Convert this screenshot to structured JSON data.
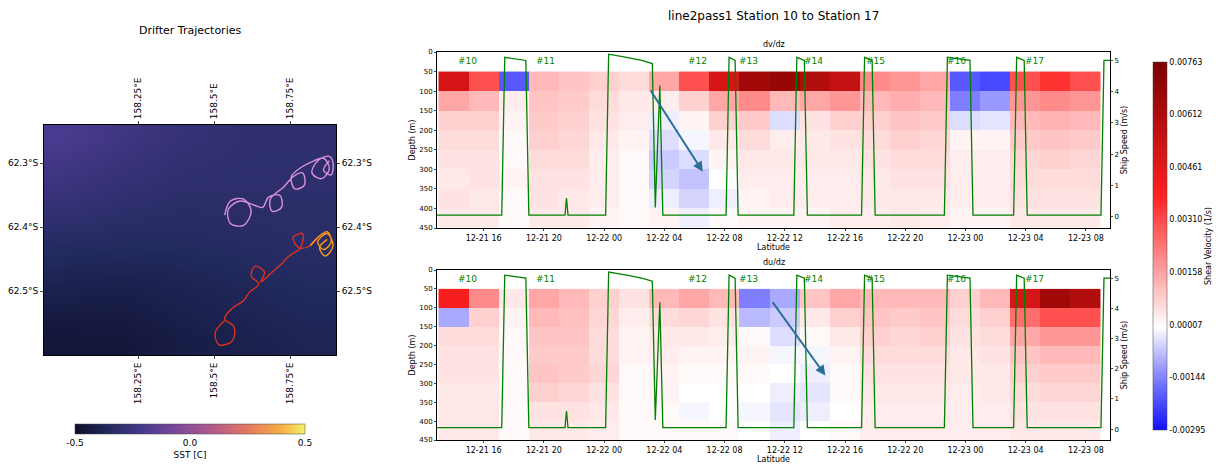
{
  "chart_data": [
    {
      "type": "map",
      "title": "Drifter Trajectories",
      "xlim": [
        157.94,
        158.9
      ],
      "xticks": [
        {
          "value": 158.25,
          "label": "158.25°E"
        },
        {
          "value": 158.5,
          "label": "158.5°E"
        },
        {
          "value": 158.75,
          "label": "158.75°E"
        }
      ],
      "ylim": [
        -62.6,
        -62.24
      ],
      "yticks": [
        {
          "value": -62.3,
          "label": "62.3°S"
        },
        {
          "value": -62.4,
          "label": "62.4°S"
        },
        {
          "value": -62.5,
          "label": "62.5°S"
        }
      ],
      "sst": {
        "label": "SST [C]",
        "range": [
          -0.5,
          0.5
        ],
        "ticks": [
          -0.5,
          {
            "value": 0,
            "label": "0.0"
          },
          0.5
        ],
        "x": [
          158.0,
          158.2,
          158.4,
          158.6,
          158.8
        ],
        "y": [
          -62.58,
          -62.5,
          -62.42,
          -62.34,
          -62.26
        ],
        "z": [
          [
            -0.46,
            -0.45,
            -0.42,
            -0.4,
            -0.38
          ],
          [
            -0.4,
            -0.41,
            -0.39,
            -0.37,
            -0.35
          ],
          [
            -0.33,
            -0.34,
            -0.34,
            -0.33,
            -0.32
          ],
          [
            -0.26,
            -0.29,
            -0.31,
            -0.31,
            -0.31
          ],
          [
            -0.2,
            -0.24,
            -0.28,
            -0.3,
            -0.3
          ]
        ]
      },
      "series": [
        {
          "color": "#dc8fdc",
          "x": [
            158.534,
            158.553,
            158.596,
            158.621,
            158.596,
            158.553,
            158.546,
            158.584,
            158.628,
            158.659,
            158.678,
            158.715,
            158.721,
            158.69,
            158.684,
            158.728,
            158.759,
            158.79,
            158.796,
            158.765,
            158.753,
            158.79,
            158.828,
            158.859,
            158.878,
            158.853,
            158.821,
            158.84,
            158.878,
            158.89,
            158.884,
            158.859,
            158.878
          ],
          "y": [
            -62.381,
            -62.359,
            -62.356,
            -62.375,
            -62.397,
            -62.394,
            -62.372,
            -62.359,
            -62.365,
            -62.369,
            -62.353,
            -62.35,
            -62.369,
            -62.375,
            -62.356,
            -62.337,
            -62.321,
            -62.315,
            -62.334,
            -62.34,
            -62.321,
            -62.305,
            -62.296,
            -62.292,
            -62.308,
            -62.324,
            -62.315,
            -62.296,
            -62.289,
            -62.299,
            -62.318,
            -62.311,
            -62.296
          ]
        },
        {
          "color": "#d8321e",
          "x": [
            158.534,
            158.503,
            158.515,
            158.559,
            158.565,
            158.534,
            158.559,
            158.596,
            158.615,
            158.646,
            158.621,
            158.634,
            158.665,
            158.653,
            158.684,
            158.721,
            158.746,
            158.784,
            158.79,
            158.759,
            158.778,
            158.815,
            158.84
          ],
          "y": [
            -62.546,
            -62.565,
            -62.584,
            -62.578,
            -62.556,
            -62.543,
            -62.527,
            -62.515,
            -62.502,
            -62.489,
            -62.476,
            -62.461,
            -62.47,
            -62.486,
            -62.473,
            -62.457,
            -62.445,
            -62.432,
            -62.41,
            -62.416,
            -62.432,
            -62.429,
            -62.416
          ]
        },
        {
          "color": "#ff9a1a",
          "x": [
            158.815,
            158.84,
            158.871,
            158.884,
            158.859,
            158.84,
            158.871,
            158.89,
            158.865,
            158.846,
            158.871
          ],
          "y": [
            -62.429,
            -62.416,
            -62.407,
            -62.423,
            -62.435,
            -62.423,
            -62.41,
            -62.429,
            -62.445,
            -62.432,
            -62.419
          ]
        }
      ]
    },
    {
      "type": "heatmap",
      "title": "line2pass1 Station 10 to Station 17",
      "x_label": "Latitude",
      "y_label": "Depth (m)",
      "y2_label": "Ship Speed (m/s)",
      "xlim": [
        12.9,
        57.6
      ],
      "xticks": [
        {
          "value": 16,
          "label": "12-21 16"
        },
        {
          "value": 20,
          "label": "12-21 20"
        },
        {
          "value": 24,
          "label": "12-22 00"
        },
        {
          "value": 28,
          "label": "12-22 04"
        },
        {
          "value": 32,
          "label": "12-22 08"
        },
        {
          "value": 36,
          "label": "12-22 12"
        },
        {
          "value": 40,
          "label": "12-22 16"
        },
        {
          "value": 44,
          "label": "12-22 20"
        },
        {
          "value": 48,
          "label": "12-23 00"
        },
        {
          "value": 52,
          "label": "12-23 04"
        },
        {
          "value": 56,
          "label": "12-23 08"
        }
      ],
      "ylim": [
        450,
        0
      ],
      "yticks": [
        0,
        50,
        100,
        150,
        200,
        250,
        300,
        350,
        400,
        450
      ],
      "y2lim": [
        -0.36,
        5.27
      ],
      "y2ticks": [
        0,
        1,
        2,
        3,
        4,
        5
      ],
      "colorbar": {
        "label": "Shear Velocity (1/s)",
        "range": [
          -0.00295,
          0.00763
        ],
        "ticks": [
          0.00763,
          0.00612,
          0.00461,
          {
            "value": 0.0031,
            "label": "0.00310"
          },
          0.00158,
          7e-05,
          -0.00144,
          -0.00295
        ]
      },
      "x": [
        14,
        16,
        18,
        20,
        22,
        24,
        26,
        28,
        30,
        32,
        34,
        36,
        38,
        40,
        42,
        44,
        46,
        48,
        50,
        52,
        54,
        56
      ],
      "y": [
        75,
        125,
        175,
        225,
        275,
        325,
        375,
        425
      ],
      "panels": [
        {
          "title": "dv/dz",
          "columns": [
            [
              0.005,
              0.0015,
              0.0008,
              0.0006,
              0.0005,
              0.0004,
              0.0005,
              0.0004
            ],
            [
              0.003,
              0.0012,
              0.0008,
              0.0006,
              0.0005,
              0.0005,
              0.0004,
              0.0004
            ],
            [
              -0.002,
              0.0003,
              0.0002,
              0.0001,
              0.0001,
              0.0002,
              0.0001,
              0.0001
            ],
            [
              0.0012,
              0.001,
              0.0009,
              0.0008,
              0.0006,
              0.0005,
              0.0005,
              0.0004
            ],
            [
              0.001,
              0.0009,
              0.0008,
              0.0007,
              0.0006,
              0.0005,
              0.0004,
              0.0004
            ],
            [
              0.0008,
              0.0006,
              0.0005,
              0.0004,
              0.0003,
              0.0003,
              0.0003,
              0.0002
            ],
            [
              0.0006,
              0.0004,
              0.0003,
              0.0002,
              0.0001,
              0.0001,
              0.0001,
              0.0001
            ],
            [
              0.0015,
              0.0003,
              -0.0002,
              -0.0004,
              -0.0006,
              -0.0005,
              -0.0002,
              0.0002
            ],
            [
              0.003,
              0.0008,
              0.0002,
              -0.0001,
              -0.0004,
              -0.0007,
              -0.0005,
              -0.0002
            ],
            [
              0.005,
              0.0015,
              0.0008,
              0.0004,
              0.0002,
              0.0,
              -0.0002,
              0.0001
            ],
            [
              0.0065,
              0.002,
              0.0009,
              0.0006,
              0.0004,
              0.0003,
              0.0002,
              0.0002
            ],
            [
              0.0068,
              0.0012,
              -0.0004,
              0.0003,
              0.0004,
              0.0003,
              0.0003,
              0.0002
            ],
            [
              0.006,
              0.0015,
              0.0005,
              0.0004,
              0.0004,
              0.0003,
              0.0003,
              0.0002
            ],
            [
              0.0055,
              0.0018,
              0.0008,
              0.0005,
              0.0004,
              0.0003,
              0.0003,
              0.0003
            ],
            [
              0.002,
              0.0012,
              0.0008,
              0.0006,
              0.0005,
              0.0004,
              0.0004,
              0.0003
            ],
            [
              0.0018,
              0.0014,
              0.001,
              0.0008,
              0.0006,
              0.0005,
              0.0004,
              0.0004
            ],
            [
              0.0015,
              0.0012,
              0.0009,
              0.0007,
              0.0006,
              0.0005,
              0.0004,
              0.0003
            ],
            [
              -0.002,
              -0.0015,
              -0.0004,
              0.0002,
              0.0003,
              0.0003,
              0.0003,
              0.0002
            ],
            [
              -0.0022,
              -0.0012,
              -0.0003,
              0.0002,
              0.0003,
              0.0003,
              0.0003,
              0.0002
            ],
            [
              0.003,
              0.0018,
              0.0012,
              0.0009,
              0.0007,
              0.0006,
              0.0005,
              0.0004
            ],
            [
              0.0035,
              0.002,
              0.0013,
              0.001,
              0.0008,
              0.0006,
              0.0005,
              0.0004
            ],
            [
              0.003,
              0.0018,
              0.0012,
              0.0009,
              0.0007,
              0.0006,
              0.0005,
              0.0004
            ]
          ]
        },
        {
          "title": "du/dz",
          "columns": [
            [
              0.004,
              -0.001,
              0.0006,
              0.0005,
              0.0005,
              0.0004,
              0.0004,
              0.0004
            ],
            [
              0.002,
              0.0008,
              0.0006,
              0.0005,
              0.0005,
              0.0004,
              0.0004,
              0.0004
            ],
            [
              0.0004,
              0.0002,
              0.0001,
              0.0001,
              0.0001,
              0.0001,
              0.0001,
              0.0001
            ],
            [
              0.0015,
              0.0012,
              0.001,
              0.0009,
              0.001,
              0.0008,
              0.0005,
              0.0004
            ],
            [
              0.0012,
              0.0011,
              0.001,
              0.0009,
              0.0009,
              0.0007,
              0.0005,
              0.0004
            ],
            [
              0.0008,
              0.0007,
              0.0006,
              0.0006,
              0.0007,
              0.0005,
              0.0004,
              0.0003
            ],
            [
              0.0005,
              0.0003,
              0.0002,
              0.0002,
              0.0001,
              0.0001,
              0.0001,
              0.0001
            ],
            [
              0.0012,
              0.0006,
              0.0004,
              0.0003,
              0.0002,
              0.0002,
              0.0001,
              0.0001
            ],
            [
              0.0015,
              0.0007,
              0.0004,
              0.0002,
              0.0001,
              0.0,
              -0.0001,
              0.0001
            ],
            [
              0.0012,
              0.0005,
              0.0003,
              0.0002,
              0.0001,
              0.0,
              0.0,
              0.0001
            ],
            [
              -0.0015,
              -0.0008,
              0.0001,
              0.0002,
              0.0001,
              0.0,
              -0.0001,
              0.0
            ],
            [
              -0.001,
              -0.0006,
              -0.0004,
              -0.0001,
              0.0,
              -0.0002,
              -0.0003,
              -0.0002
            ],
            [
              0.001,
              0.0004,
              0.0001,
              -0.0001,
              -0.0002,
              -0.0003,
              -0.0002,
              0.0
            ],
            [
              0.0015,
              0.0008,
              0.0004,
              0.0002,
              0.0001,
              0.0001,
              0.0,
              0.0001
            ],
            [
              0.0012,
              0.001,
              0.0008,
              0.0006,
              0.0005,
              0.0004,
              0.0003,
              0.0003
            ],
            [
              0.0012,
              0.0009,
              0.0007,
              0.0006,
              0.0005,
              0.0004,
              0.0003,
              0.0003
            ],
            [
              0.0012,
              0.001,
              0.0008,
              0.0006,
              0.0005,
              0.0004,
              0.0003,
              0.0003
            ],
            [
              0.0008,
              0.0006,
              0.0005,
              0.0004,
              0.0004,
              0.0003,
              0.0003,
              0.0003
            ],
            [
              0.0012,
              0.0008,
              0.0006,
              0.0005,
              0.0004,
              0.0004,
              0.0003,
              0.0003
            ],
            [
              0.005,
              0.0025,
              0.0015,
              0.001,
              0.0008,
              0.0006,
              0.0005,
              0.0004
            ],
            [
              0.0065,
              0.003,
              0.0018,
              0.0012,
              0.0009,
              0.0007,
              0.0005,
              0.0004
            ],
            [
              0.006,
              0.003,
              0.0018,
              0.0012,
              0.0009,
              0.0007,
              0.0005,
              0.0004
            ]
          ]
        }
      ],
      "series": [
        {
          "axis": "y2",
          "type": "line",
          "color": "green",
          "x": [
            12.9,
            17.2,
            17.4,
            18.8,
            19.0,
            21.4,
            21.5,
            21.6,
            24.1,
            24.3,
            25.5,
            26.5,
            27.2,
            27.4,
            27.7,
            27.9,
            32.1,
            32.3,
            32.7,
            32.9,
            36.6,
            36.8,
            37.3,
            37.5,
            41.1,
            41.3,
            41.8,
            42.0,
            46.6,
            46.8,
            48.3,
            48.5,
            51.2,
            51.4,
            51.9,
            52.1,
            57.0,
            57.2,
            57.6
          ],
          "values": [
            0.05,
            0.05,
            5.1,
            5.0,
            0.05,
            0.05,
            0.6,
            0.05,
            0.05,
            5.2,
            5.1,
            5.0,
            4.9,
            0.3,
            4.2,
            0.05,
            0.05,
            5.1,
            5.0,
            0.05,
            0.05,
            5.1,
            5.0,
            0.05,
            0.05,
            5.1,
            5.0,
            0.05,
            0.05,
            5.1,
            5.0,
            0.05,
            0.05,
            5.1,
            5.0,
            0.05,
            0.05,
            5.0,
            5.0
          ]
        }
      ],
      "annotations": [
        {
          "text": "#10",
          "x": 14.9
        },
        {
          "text": "#11",
          "x": 20.1
        },
        {
          "text": "#12",
          "x": 30.2
        },
        {
          "text": "#13",
          "x": 33.6
        },
        {
          "text": "#14",
          "x": 37.9
        },
        {
          "text": "#15",
          "x": 42.0
        },
        {
          "text": "#16",
          "x": 47.4
        },
        {
          "text": "#17",
          "x": 52.6
        }
      ]
    }
  ]
}
